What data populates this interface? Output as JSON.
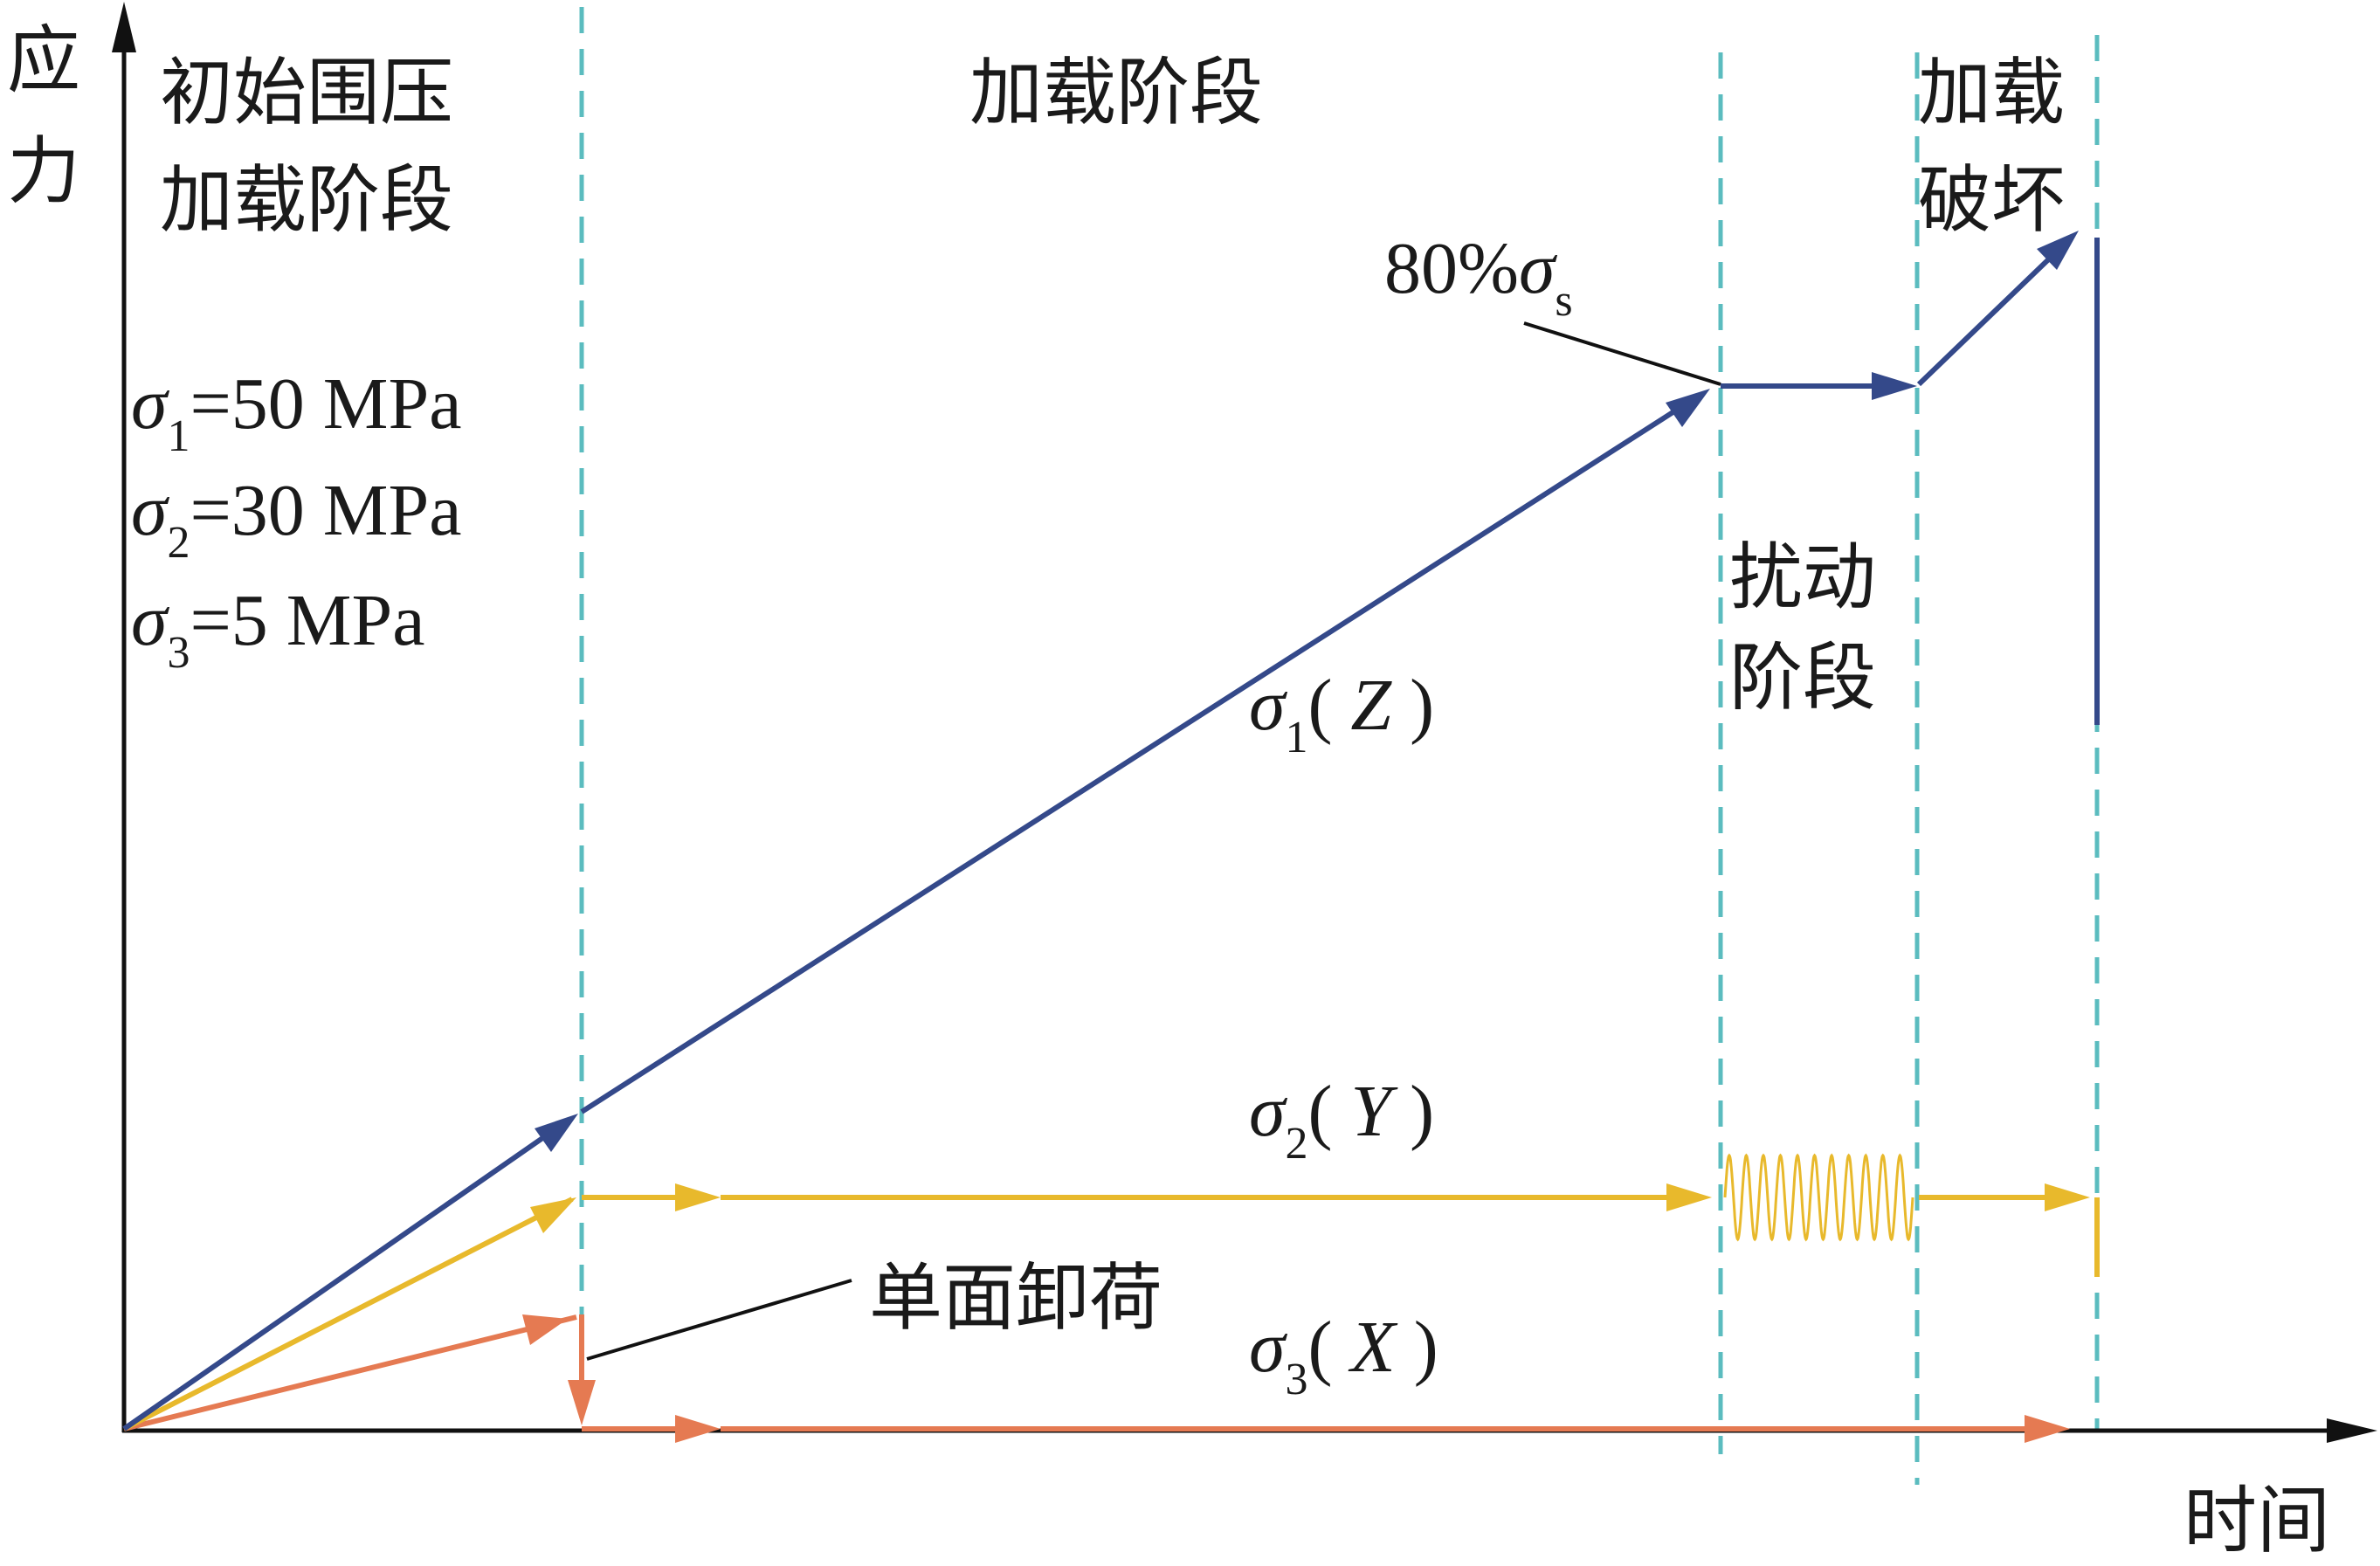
{
  "axes": {
    "y_label_line1": "应",
    "y_label_line2": "力",
    "x_label": "时间"
  },
  "stages": {
    "stage1_line1": "初始围压",
    "stage1_line2": "加载阶段",
    "stage2": "加载阶段",
    "stage3_line1": "扰动",
    "stage3_line2": "阶段",
    "stage4_line1": "加载",
    "stage4_line2": "破坏"
  },
  "initial_stress": {
    "s1": {
      "symbol": "σ",
      "sub": "1",
      "value": "=50 MPa"
    },
    "s2": {
      "symbol": "σ",
      "sub": "2",
      "value": "=30 MPa"
    },
    "s3": {
      "symbol": "σ",
      "sub": "3",
      "value": "=5 MPa"
    }
  },
  "curves": {
    "sigma1": {
      "symbol": "σ",
      "sub": "1",
      "dir_open": "(",
      "dir": " Z ",
      "dir_close": ")",
      "color": "#34498a"
    },
    "sigma2": {
      "symbol": "σ",
      "sub": "2",
      "dir_open": "(",
      "dir": " Y ",
      "dir_close": ")",
      "color": "#e8b92c"
    },
    "sigma3": {
      "symbol": "σ",
      "sub": "3",
      "dir_open": "(",
      "dir": " X ",
      "dir_close": ")",
      "color": "#e57a52"
    }
  },
  "annotations": {
    "peak_prefix": "80%",
    "peak_symbol": "σ",
    "peak_sub": "s",
    "unloading": "单面卸荷"
  },
  "colors": {
    "divider": "#5bbcbf",
    "axis": "#111111",
    "leader": "#111111"
  }
}
